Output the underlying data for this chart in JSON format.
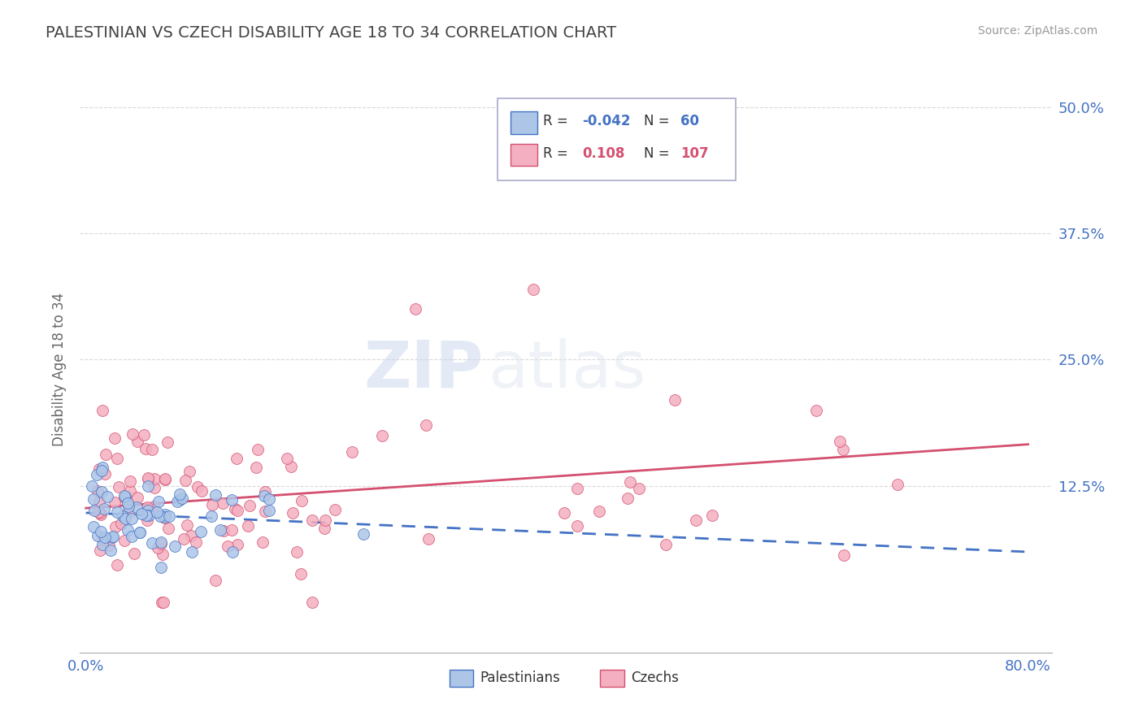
{
  "title": "PALESTINIAN VS CZECH DISABILITY AGE 18 TO 34 CORRELATION CHART",
  "source": "Source: ZipAtlas.com",
  "ylabel": "Disability Age 18 to 34",
  "xlim": [
    -0.005,
    0.82
  ],
  "ylim": [
    -0.04,
    0.52
  ],
  "ytick_positions": [
    0.125,
    0.25,
    0.375,
    0.5
  ],
  "ytick_labels": [
    "12.5%",
    "25.0%",
    "37.5%",
    "50.0%"
  ],
  "background_color": "#ffffff",
  "grid_color": "#d0d0d0",
  "title_color": "#444444",
  "axis_label_color": "#666666",
  "tick_color": "#4472c4",
  "watermark_zip": "ZIP",
  "watermark_atlas": "atlas",
  "palestinians_fill": "#adc6e8",
  "palestinians_edge": "#4472c4",
  "czechs_fill": "#f4afc0",
  "czechs_edge": "#d45070",
  "palestinians_line_color": "#4472c4",
  "czechs_line_color": "#d45070",
  "seed": 12345
}
